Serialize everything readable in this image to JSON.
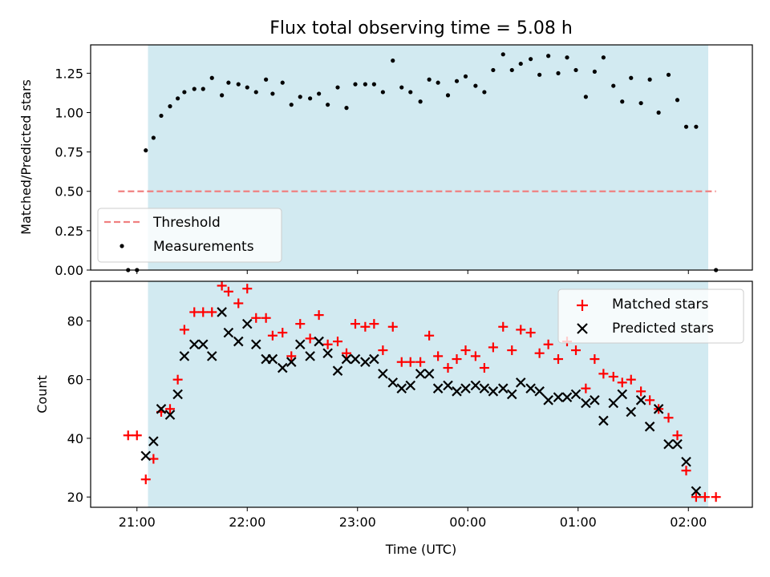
{
  "chart_data": [
    {
      "type": "scatter",
      "title": "Flux total observing time = 5.08 h",
      "xlabel": "",
      "ylabel": "Matched/Predicted stars",
      "ylim": [
        0,
        1.43
      ],
      "yticks": [
        0.0,
        0.25,
        0.5,
        0.75,
        1.0,
        1.25
      ],
      "ytick_labels": [
        "0.00",
        "0.25",
        "0.50",
        "0.75",
        "1.00",
        "1.25"
      ],
      "x_unit": "hours after 00:00 of the first day (UTC)",
      "xlim": [
        20.58,
        26.58
      ],
      "shaded_span": [
        21.1,
        26.18
      ],
      "shade_color": "#add8e6",
      "legend_location": "lower left",
      "series": [
        {
          "name": "Threshold",
          "kind": "dashed-line",
          "color": "#f08080",
          "x": [
            20.83,
            26.25
          ],
          "y": [
            0.5,
            0.5
          ]
        },
        {
          "name": "Measurements",
          "kind": "dots",
          "color": "#000000",
          "points": [
            [
              20.92,
              0.0
            ],
            [
              21.0,
              0.0
            ],
            [
              21.08,
              0.76
            ],
            [
              21.15,
              0.84
            ],
            [
              21.22,
              0.98
            ],
            [
              21.3,
              1.04
            ],
            [
              21.37,
              1.09
            ],
            [
              21.43,
              1.13
            ],
            [
              21.52,
              1.15
            ],
            [
              21.6,
              1.15
            ],
            [
              21.68,
              1.22
            ],
            [
              21.77,
              1.11
            ],
            [
              21.83,
              1.19
            ],
            [
              21.92,
              1.18
            ],
            [
              22.0,
              1.16
            ],
            [
              22.08,
              1.13
            ],
            [
              22.17,
              1.21
            ],
            [
              22.23,
              1.12
            ],
            [
              22.32,
              1.19
            ],
            [
              22.4,
              1.05
            ],
            [
              22.48,
              1.1
            ],
            [
              22.57,
              1.09
            ],
            [
              22.65,
              1.12
            ],
            [
              22.73,
              1.05
            ],
            [
              22.82,
              1.16
            ],
            [
              22.9,
              1.03
            ],
            [
              22.98,
              1.18
            ],
            [
              23.07,
              1.18
            ],
            [
              23.15,
              1.18
            ],
            [
              23.23,
              1.13
            ],
            [
              23.32,
              1.33
            ],
            [
              23.4,
              1.16
            ],
            [
              23.48,
              1.13
            ],
            [
              23.57,
              1.07
            ],
            [
              23.65,
              1.21
            ],
            [
              23.73,
              1.19
            ],
            [
              23.82,
              1.11
            ],
            [
              23.9,
              1.2
            ],
            [
              23.98,
              1.23
            ],
            [
              24.07,
              1.17
            ],
            [
              24.15,
              1.13
            ],
            [
              24.23,
              1.27
            ],
            [
              24.32,
              1.37
            ],
            [
              24.4,
              1.27
            ],
            [
              24.48,
              1.31
            ],
            [
              24.57,
              1.34
            ],
            [
              24.65,
              1.24
            ],
            [
              24.73,
              1.36
            ],
            [
              24.82,
              1.25
            ],
            [
              24.9,
              1.35
            ],
            [
              24.98,
              1.27
            ],
            [
              25.07,
              1.1
            ],
            [
              25.15,
              1.26
            ],
            [
              25.23,
              1.35
            ],
            [
              25.32,
              1.17
            ],
            [
              25.4,
              1.07
            ],
            [
              25.48,
              1.22
            ],
            [
              25.57,
              1.06
            ],
            [
              25.65,
              1.21
            ],
            [
              25.73,
              1.0
            ],
            [
              25.82,
              1.24
            ],
            [
              25.9,
              1.08
            ],
            [
              25.98,
              0.91
            ],
            [
              26.07,
              0.91
            ],
            [
              26.25,
              0.0
            ]
          ]
        }
      ]
    },
    {
      "type": "scatter",
      "title": "",
      "xlabel": "Time (UTC)",
      "ylabel": "Count",
      "ylim": [
        16.5,
        93.5
      ],
      "yticks": [
        20,
        40,
        60,
        80
      ],
      "ytick_labels": [
        "20",
        "40",
        "60",
        "80"
      ],
      "x_unit": "hours after 00:00 of the first day (UTC)",
      "xlim": [
        20.58,
        26.58
      ],
      "xticks": [
        21,
        22,
        23,
        24,
        25,
        26
      ],
      "xtick_labels": [
        "21:00",
        "22:00",
        "23:00",
        "00:00",
        "01:00",
        "02:00"
      ],
      "shaded_span": [
        21.1,
        26.18
      ],
      "shade_color": "#add8e6",
      "legend_location": "upper right",
      "series": [
        {
          "name": "Matched stars",
          "marker": "+",
          "color": "#ff0000",
          "points": [
            [
              20.92,
              41
            ],
            [
              21.0,
              41
            ],
            [
              21.08,
              26
            ],
            [
              21.15,
              33
            ],
            [
              21.22,
              49
            ],
            [
              21.3,
              50
            ],
            [
              21.37,
              60
            ],
            [
              21.43,
              77
            ],
            [
              21.52,
              83
            ],
            [
              21.6,
              83
            ],
            [
              21.68,
              83
            ],
            [
              21.77,
              92
            ],
            [
              21.83,
              90
            ],
            [
              21.92,
              86
            ],
            [
              22.0,
              91
            ],
            [
              22.08,
              81
            ],
            [
              22.17,
              81
            ],
            [
              22.23,
              75
            ],
            [
              22.32,
              76
            ],
            [
              22.4,
              68
            ],
            [
              22.48,
              79
            ],
            [
              22.57,
              74
            ],
            [
              22.65,
              82
            ],
            [
              22.73,
              72
            ],
            [
              22.82,
              73
            ],
            [
              22.9,
              69
            ],
            [
              22.98,
              79
            ],
            [
              23.07,
              78
            ],
            [
              23.15,
              79
            ],
            [
              23.23,
              70
            ],
            [
              23.32,
              78
            ],
            [
              23.4,
              66
            ],
            [
              23.48,
              66
            ],
            [
              23.57,
              66
            ],
            [
              23.65,
              75
            ],
            [
              23.73,
              68
            ],
            [
              23.82,
              64
            ],
            [
              23.9,
              67
            ],
            [
              23.98,
              70
            ],
            [
              24.07,
              68
            ],
            [
              24.15,
              64
            ],
            [
              24.23,
              71
            ],
            [
              24.32,
              78
            ],
            [
              24.4,
              70
            ],
            [
              24.48,
              77
            ],
            [
              24.57,
              76
            ],
            [
              24.65,
              69
            ],
            [
              24.73,
              72
            ],
            [
              24.82,
              67
            ],
            [
              24.9,
              73
            ],
            [
              24.98,
              70
            ],
            [
              25.07,
              57
            ],
            [
              25.15,
              67
            ],
            [
              25.23,
              62
            ],
            [
              25.32,
              61
            ],
            [
              25.4,
              59
            ],
            [
              25.48,
              60
            ],
            [
              25.57,
              56
            ],
            [
              25.65,
              53
            ],
            [
              25.73,
              50
            ],
            [
              25.82,
              47
            ],
            [
              25.9,
              41
            ],
            [
              25.98,
              29
            ],
            [
              26.07,
              20
            ],
            [
              26.15,
              20
            ],
            [
              26.25,
              20
            ]
          ]
        },
        {
          "name": "Predicted stars",
          "marker": "x",
          "color": "#000000",
          "points": [
            [
              21.08,
              34
            ],
            [
              21.15,
              39
            ],
            [
              21.22,
              50
            ],
            [
              21.3,
              48
            ],
            [
              21.37,
              55
            ],
            [
              21.43,
              68
            ],
            [
              21.52,
              72
            ],
            [
              21.6,
              72
            ],
            [
              21.68,
              68
            ],
            [
              21.77,
              83
            ],
            [
              21.83,
              76
            ],
            [
              21.92,
              73
            ],
            [
              22.0,
              79
            ],
            [
              22.08,
              72
            ],
            [
              22.17,
              67
            ],
            [
              22.23,
              67
            ],
            [
              22.32,
              64
            ],
            [
              22.4,
              66
            ],
            [
              22.48,
              72
            ],
            [
              22.57,
              68
            ],
            [
              22.65,
              73
            ],
            [
              22.73,
              69
            ],
            [
              22.82,
              63
            ],
            [
              22.9,
              67
            ],
            [
              22.98,
              67
            ],
            [
              23.07,
              66
            ],
            [
              23.15,
              67
            ],
            [
              23.23,
              62
            ],
            [
              23.32,
              59
            ],
            [
              23.4,
              57
            ],
            [
              23.48,
              58
            ],
            [
              23.57,
              62
            ],
            [
              23.65,
              62
            ],
            [
              23.73,
              57
            ],
            [
              23.82,
              58
            ],
            [
              23.9,
              56
            ],
            [
              23.98,
              57
            ],
            [
              24.07,
              58
            ],
            [
              24.15,
              57
            ],
            [
              24.23,
              56
            ],
            [
              24.32,
              57
            ],
            [
              24.4,
              55
            ],
            [
              24.48,
              59
            ],
            [
              24.57,
              57
            ],
            [
              24.65,
              56
            ],
            [
              24.73,
              53
            ],
            [
              24.82,
              54
            ],
            [
              24.9,
              54
            ],
            [
              24.98,
              55
            ],
            [
              25.07,
              52
            ],
            [
              25.15,
              53
            ],
            [
              25.23,
              46
            ],
            [
              25.32,
              52
            ],
            [
              25.4,
              55
            ],
            [
              25.48,
              49
            ],
            [
              25.57,
              53
            ],
            [
              25.65,
              44
            ],
            [
              25.73,
              50
            ],
            [
              25.82,
              38
            ],
            [
              25.9,
              38
            ],
            [
              25.98,
              32
            ],
            [
              26.07,
              22
            ]
          ]
        }
      ]
    }
  ]
}
